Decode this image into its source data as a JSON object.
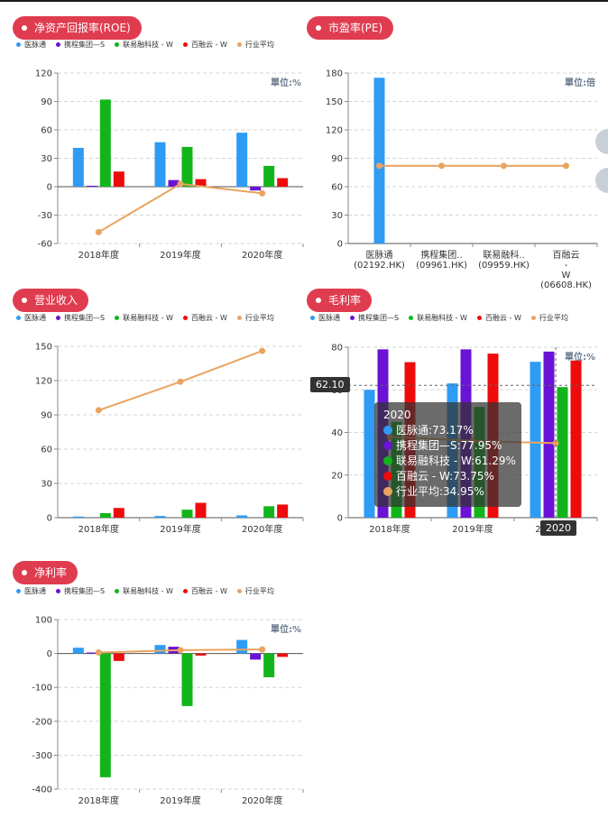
{
  "colors": {
    "s1": "#2e9bf5",
    "s2": "#6a13d4",
    "s3": "#11b51a",
    "s4": "#ee0b0b",
    "avg": "#e8a460",
    "pill": "#e03c4f"
  },
  "legend": [
    {
      "label": "医脉通",
      "color": "#2e9bf5"
    },
    {
      "label": "携程集团—S",
      "color": "#6a13d4"
    },
    {
      "label": "联易融科技 - W",
      "color": "#11b51a"
    },
    {
      "label": "百融云 - W",
      "color": "#ee0b0b"
    },
    {
      "label": "行业平均",
      "color": "#e8a460"
    }
  ],
  "panels": {
    "roe": {
      "title": "净资产回报率(ROE)",
      "unit": "單位:%"
    },
    "pe": {
      "title": "市盈率(PE)",
      "unit": "單位:倍"
    },
    "revenue": {
      "title": "营业收入"
    },
    "gross": {
      "title": "毛利率",
      "unit": "單位:%"
    },
    "net": {
      "title": "净利率",
      "unit": "單位:%"
    }
  },
  "tooltip": {
    "title": "2020",
    "rows": [
      {
        "text": "医脉通:73.17%",
        "color": "#2e9bf5"
      },
      {
        "text": "携程集团—S:77.95%",
        "color": "#6a13d4"
      },
      {
        "text": "联易融科技 - W:61.29%",
        "color": "#11b51a"
      },
      {
        "text": "百融云 - W:73.75%",
        "color": "#ee0b0b"
      },
      {
        "text": "行业平均:34.95%",
        "color": "#e8a460"
      }
    ],
    "axis_y_value": "62.10",
    "axis_x_value": "2020"
  },
  "chart_data": [
    {
      "id": "roe",
      "type": "bar",
      "title": "净资产回报率(ROE)",
      "categories": [
        "2018年度",
        "2019年度",
        "2020年度"
      ],
      "ylim": [
        -60,
        120
      ],
      "yticks": [
        -60,
        -30,
        0,
        30,
        60,
        90,
        120
      ],
      "series": [
        {
          "name": "医脉通",
          "values": [
            41,
            47,
            57
          ]
        },
        {
          "name": "携程集团—S",
          "values": [
            1,
            7,
            -4
          ]
        },
        {
          "name": "联易融科技 - W",
          "values": [
            92,
            42,
            22
          ]
        },
        {
          "name": "百融云 - W",
          "values": [
            16,
            8,
            9
          ]
        }
      ],
      "line": {
        "name": "行业平均",
        "values": [
          -48,
          3,
          -7
        ]
      }
    },
    {
      "id": "pe",
      "type": "bar",
      "title": "市盈率(PE)",
      "categories": [
        "医脉通 (02192.HK)",
        "携程集团.. (09961.HK)",
        "联易融科.. (09959.HK)",
        "百融云 - W (06608.HK)"
      ],
      "ylim": [
        0,
        180
      ],
      "yticks": [
        0,
        30,
        60,
        90,
        120,
        150,
        180
      ],
      "series": [
        {
          "name": "市盈率",
          "values": [
            175,
            0,
            0,
            0
          ]
        }
      ],
      "line": {
        "name": "行业平均",
        "values": [
          82,
          82,
          82,
          82
        ]
      }
    },
    {
      "id": "revenue",
      "type": "bar",
      "title": "营业收入",
      "categories": [
        "2018年度",
        "2019年度",
        "2020年度"
      ],
      "ylim": [
        0,
        150
      ],
      "yticks": [
        0,
        30,
        60,
        90,
        120,
        150
      ],
      "series": [
        {
          "name": "医脉通",
          "values": [
            1,
            1.5,
            2
          ]
        },
        {
          "name": "携程集团—S",
          "values": [
            0,
            0,
            0
          ]
        },
        {
          "name": "联易融科技 - W",
          "values": [
            4,
            7,
            10
          ]
        },
        {
          "name": "百融云 - W",
          "values": [
            8.5,
            13,
            11.5
          ]
        }
      ],
      "line": {
        "name": "行业平均",
        "values": [
          94,
          119,
          146
        ]
      }
    },
    {
      "id": "gross",
      "type": "bar",
      "title": "毛利率",
      "categories": [
        "2018年度",
        "2019年度",
        "2020年度"
      ],
      "ylim": [
        0,
        80
      ],
      "yticks": [
        0,
        20,
        40,
        60,
        80
      ],
      "series": [
        {
          "name": "医脉通",
          "values": [
            60,
            63,
            73.17
          ]
        },
        {
          "name": "携程集团—S",
          "values": [
            79,
            79,
            77.95
          ]
        },
        {
          "name": "联易融科技 - W",
          "values": [
            45,
            52,
            61.29
          ]
        },
        {
          "name": "百融云 - W",
          "values": [
            73,
            77,
            73.75
          ]
        }
      ],
      "line": {
        "name": "行业平均",
        "values": [
          38,
          36,
          34.95
        ]
      }
    },
    {
      "id": "net",
      "type": "bar",
      "title": "净利率",
      "categories": [
        "2018年度",
        "2019年度",
        "2020年度"
      ],
      "ylim": [
        -400,
        100
      ],
      "yticks": [
        -400,
        -300,
        -200,
        -100,
        0,
        100
      ],
      "series": [
        {
          "name": "医脉通",
          "values": [
            17,
            25,
            40
          ]
        },
        {
          "name": "携程集团—S",
          "values": [
            3,
            20,
            -18
          ]
        },
        {
          "name": "联易融科技 - W",
          "values": [
            -365,
            -155,
            -70
          ]
        },
        {
          "name": "百融云 - W",
          "values": [
            -22,
            -6,
            -10
          ]
        }
      ],
      "line": {
        "name": "行业平均",
        "values": [
          3,
          10,
          12
        ]
      }
    }
  ]
}
